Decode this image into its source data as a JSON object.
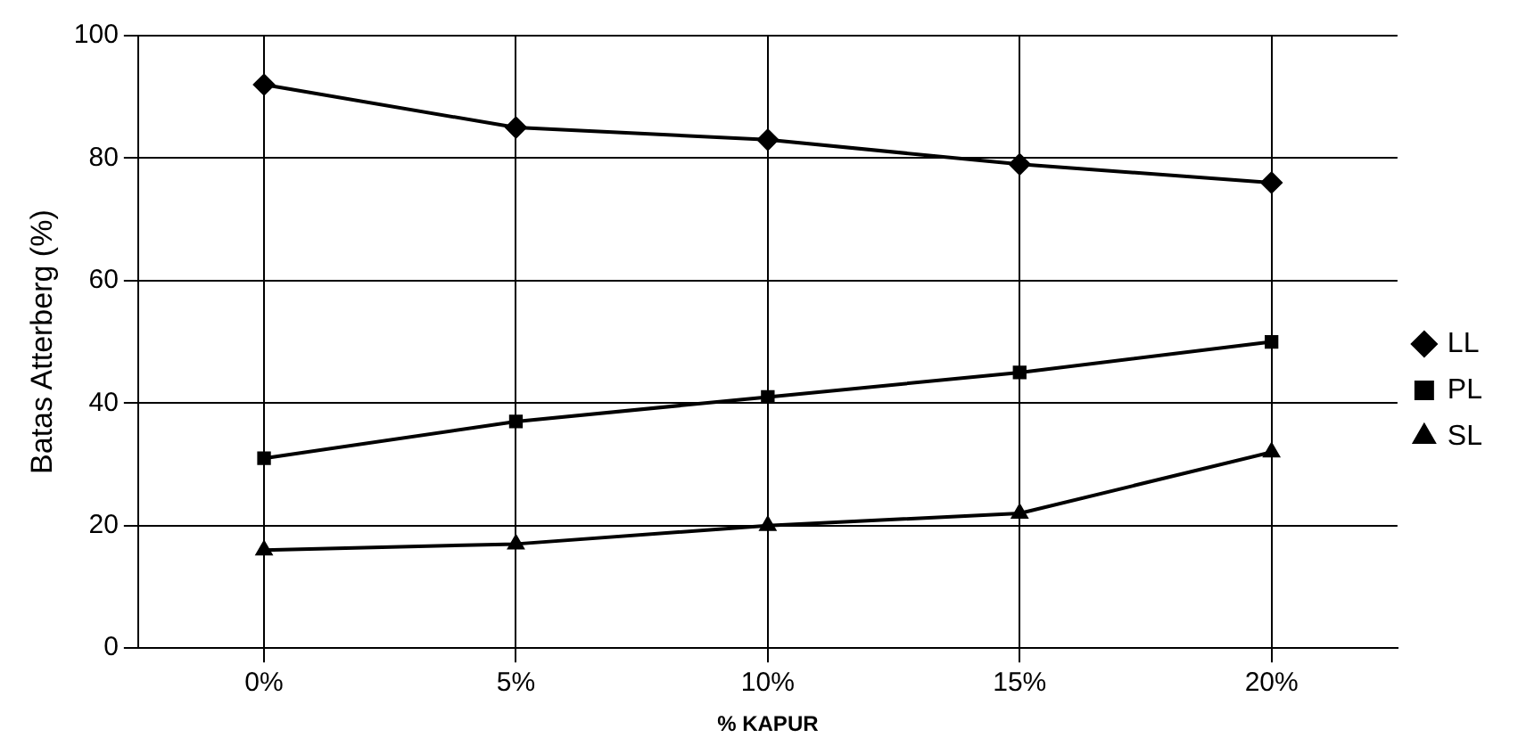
{
  "chart_data": {
    "type": "line",
    "xlabel": "% KAPUR",
    "ylabel": "Batas Atterberg (%)",
    "categories": [
      "0%",
      "5%",
      "10%",
      "15%",
      "20%"
    ],
    "series": [
      {
        "name": "LL",
        "color": "#000000",
        "marker": "diamond",
        "values": [
          92,
          85,
          83,
          79,
          76
        ]
      },
      {
        "name": "PL",
        "color": "#000000",
        "marker": "square",
        "values": [
          31,
          37,
          41,
          45,
          50
        ]
      },
      {
        "name": "SL",
        "color": "#000000",
        "marker": "triangle",
        "values": [
          16,
          17,
          20,
          22,
          32
        ]
      }
    ],
    "ylim": [
      0,
      100
    ],
    "yticks": [
      0,
      20,
      40,
      60,
      80,
      100
    ],
    "grid": true,
    "legend": "right",
    "line_style": "solid"
  }
}
